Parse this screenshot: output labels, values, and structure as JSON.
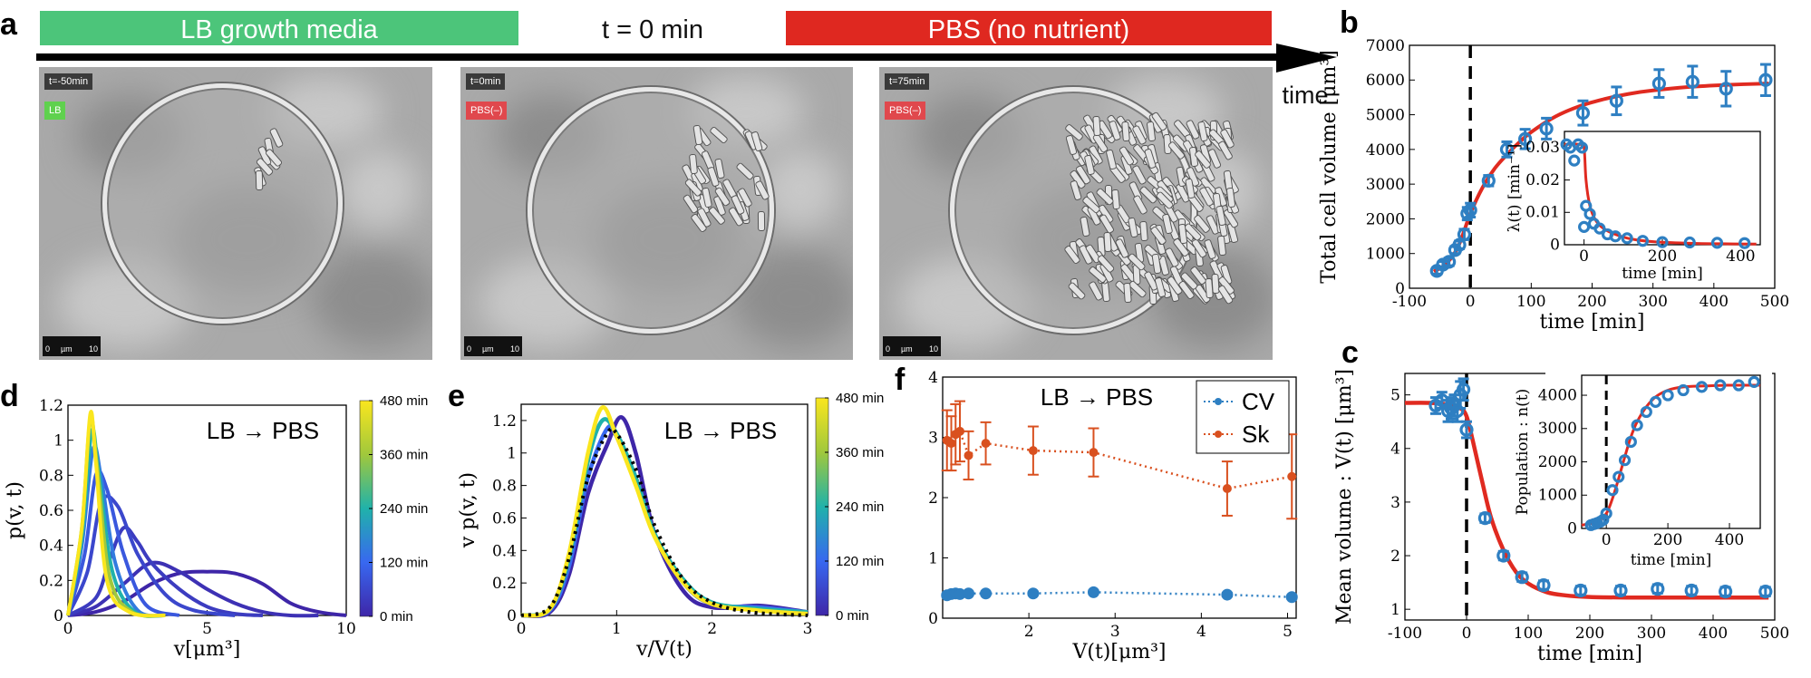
{
  "panel_a": {
    "letter": "a",
    "lb_banner": "LB growth media",
    "t0_label": "t = 0 min",
    "pbs_banner": "PBS (no nutrient)",
    "time_label": "time",
    "colors": {
      "lb": "#4cc57a",
      "pbs": "#df2820"
    },
    "frames": [
      {
        "time": "t=-50min",
        "medium": "LB",
        "medium_color": "#5fd14e",
        "scale_0": "0",
        "scale_unit": "µm",
        "scale_10": "10",
        "cells": 8
      },
      {
        "time": "t=0min",
        "medium": "PBS(–)",
        "medium_color": "#e0484d",
        "scale_0": "0",
        "scale_unit": "µm",
        "scale_10": "10",
        "cells": 40
      },
      {
        "time": "t=75min",
        "medium": "PBS(–)",
        "medium_color": "#e0484d",
        "scale_0": "0",
        "scale_unit": "µm",
        "scale_10": "10",
        "cells": 220
      }
    ]
  },
  "chart_data": [
    {
      "id": "b",
      "letter": "b",
      "type": "scatter",
      "xlabel": "time [min]",
      "ylabel": "Total cell volume [μm³]",
      "xlim": [
        -100,
        500
      ],
      "ylim": [
        0,
        7000
      ],
      "xticks": [
        "-100",
        "0",
        "100",
        "200",
        "300",
        "400",
        "500"
      ],
      "yticks": [
        "0",
        "1000",
        "2000",
        "3000",
        "4000",
        "5000",
        "6000",
        "7000"
      ],
      "points": {
        "x": [
          -55,
          -45,
          -35,
          -25,
          -18,
          -10,
          -5,
          0,
          30,
          60,
          90,
          125,
          185,
          240,
          310,
          365,
          420,
          485
        ],
        "y": [
          500,
          680,
          760,
          1100,
          1250,
          1550,
          2150,
          2250,
          3100,
          4000,
          4300,
          4600,
          5050,
          5400,
          5900,
          5950,
          5750,
          6000
        ],
        "err": [
          90,
          90,
          110,
          100,
          110,
          150,
          180,
          200,
          150,
          220,
          280,
          300,
          350,
          400,
          400,
          450,
          500,
          450
        ]
      },
      "fit": {
        "x": [
          -60,
          -40,
          -20,
          0,
          20,
          40,
          60,
          80,
          100,
          140,
          180,
          220,
          260,
          300,
          360,
          420,
          490
        ],
        "y": [
          480,
          700,
          1200,
          2150,
          2900,
          3450,
          3850,
          4200,
          4500,
          4950,
          5250,
          5450,
          5600,
          5700,
          5800,
          5860,
          5900
        ]
      },
      "t0_line": 0,
      "inset": {
        "xlabel": "time [min]",
        "ylabel": "λ(t) [min⁻¹]",
        "xlim": [
          -50,
          450
        ],
        "ylim": [
          0,
          0.035
        ],
        "xticks": [
          "0",
          "200",
          "400"
        ],
        "yticks": [
          "0",
          "0.01",
          "0.02",
          "0.03"
        ],
        "points": {
          "x": [
            -45,
            -35,
            -25,
            -15,
            -5,
            0,
            5,
            15,
            25,
            40,
            60,
            80,
            110,
            150,
            200,
            270,
            340,
            410
          ],
          "y": [
            0.031,
            0.03,
            0.026,
            0.031,
            0.03,
            0.0055,
            0.012,
            0.0095,
            0.0065,
            0.005,
            0.0032,
            0.0026,
            0.002,
            0.0012,
            0.0008,
            0.0007,
            0.0006,
            0.0005
          ]
        },
        "fit": {
          "x": [
            -50,
            -10,
            0,
            5,
            15,
            30,
            50,
            80,
            120,
            180,
            260,
            350,
            440
          ],
          "y": [
            0.031,
            0.031,
            0.03,
            0.02,
            0.012,
            0.0075,
            0.005,
            0.0032,
            0.0018,
            0.0009,
            0.0005,
            0.0003,
            0.0002
          ]
        }
      }
    },
    {
      "id": "c",
      "letter": "c",
      "type": "scatter",
      "xlabel": "time [min]",
      "ylabel": "Mean volume : V(t) [μm³]",
      "xlim": [
        -100,
        500
      ],
      "ylim": [
        0.8,
        5.4
      ],
      "xticks": [
        "-100",
        "0",
        "100",
        "200",
        "300",
        "400",
        "500"
      ],
      "yticks": [
        "1",
        "2",
        "3",
        "4",
        "5"
      ],
      "points": {
        "x": [
          -50,
          -40,
          -30,
          -25,
          -20,
          -15,
          -10,
          -5,
          0,
          30,
          60,
          90,
          125,
          185,
          250,
          310,
          365,
          420,
          485
        ],
        "y": [
          4.8,
          4.9,
          4.7,
          4.75,
          4.8,
          4.7,
          5.0,
          5.1,
          4.35,
          2.7,
          2.0,
          1.6,
          1.45,
          1.35,
          1.35,
          1.38,
          1.35,
          1.33,
          1.33
        ],
        "err": [
          0.15,
          0.15,
          0.2,
          0.2,
          0.2,
          0.2,
          0.25,
          0.2,
          0.15,
          0.08,
          0.08,
          0.08,
          0.08,
          0.08,
          0.08,
          0.08,
          0.08,
          0.08,
          0.08
        ]
      },
      "fit": {
        "x": [
          -100,
          -60,
          -30,
          -10,
          0,
          10,
          25,
          40,
          60,
          80,
          100,
          130,
          160,
          200,
          260,
          330,
          420,
          490
        ],
        "y": [
          4.85,
          4.85,
          4.82,
          4.75,
          4.6,
          4.15,
          3.4,
          2.7,
          2.1,
          1.7,
          1.48,
          1.32,
          1.26,
          1.23,
          1.22,
          1.22,
          1.22,
          1.22
        ]
      },
      "t0_line": 0,
      "inset": {
        "xlabel": "time [min]",
        "ylabel": "Population : n(t)",
        "xlim": [
          -80,
          500
        ],
        "ylim": [
          0,
          4600
        ],
        "xticks": [
          "0",
          "200",
          "400"
        ],
        "yticks": [
          "0",
          "1000",
          "2000",
          "3000",
          "4000"
        ],
        "points": {
          "x": [
            -50,
            -40,
            -30,
            -20,
            -10,
            0,
            20,
            40,
            60,
            80,
            100,
            130,
            160,
            200,
            250,
            310,
            370,
            430,
            480
          ],
          "y": [
            100,
            130,
            160,
            200,
            260,
            450,
            1150,
            1550,
            2050,
            2600,
            3100,
            3500,
            3800,
            4000,
            4150,
            4250,
            4300,
            4300,
            4400
          ]
        },
        "fit": {
          "x": [
            -80,
            -30,
            0,
            20,
            40,
            60,
            80,
            100,
            130,
            160,
            200,
            250,
            320,
            400,
            500
          ],
          "y": [
            100,
            200,
            450,
            900,
            1500,
            2150,
            2750,
            3200,
            3650,
            3950,
            4150,
            4250,
            4280,
            4300,
            4300
          ]
        }
      }
    },
    {
      "id": "d",
      "letter": "d",
      "type": "line",
      "annotation": "LB → PBS",
      "xlabel": "v[μm³]",
      "ylabel": "p(v, t)",
      "xlim": [
        0,
        10
      ],
      "ylim": [
        0,
        1.2
      ],
      "xticks": [
        "0",
        "5",
        "10"
      ],
      "yticks": [
        "0",
        "0.2",
        "0.4",
        "0.6",
        "0.8",
        "1",
        "1.2"
      ],
      "colorbar": {
        "labels": [
          "0 min",
          "120 min",
          "240 min",
          "360 min",
          "480 min"
        ],
        "range_min": [
          0,
          480
        ]
      },
      "curves": [
        {
          "t": 0,
          "x": [
            0,
            1,
            2,
            3,
            4,
            5,
            6,
            7,
            8,
            9,
            10
          ],
          "y": [
            0,
            0.02,
            0.08,
            0.18,
            0.24,
            0.25,
            0.24,
            0.18,
            0.07,
            0.02,
            0
          ]
        },
        {
          "t": 20,
          "x": [
            0,
            1,
            2,
            3,
            4,
            5,
            6,
            7,
            8,
            9
          ],
          "y": [
            0,
            0.05,
            0.18,
            0.3,
            0.25,
            0.15,
            0.07,
            0.02,
            0,
            0
          ]
        },
        {
          "t": 40,
          "x": [
            0,
            1,
            1.5,
            2,
            2.5,
            3,
            4,
            5,
            6,
            7
          ],
          "y": [
            0,
            0.1,
            0.32,
            0.5,
            0.42,
            0.3,
            0.15,
            0.05,
            0.01,
            0
          ]
        },
        {
          "t": 60,
          "x": [
            0,
            0.7,
            1.2,
            1.8,
            2.5,
            3.5,
            4.5,
            6
          ],
          "y": [
            0,
            0.25,
            0.65,
            0.62,
            0.35,
            0.12,
            0.03,
            0
          ]
        },
        {
          "t": 90,
          "x": [
            0,
            0.6,
            1.0,
            1.4,
            2.0,
            2.8,
            4
          ],
          "y": [
            0,
            0.35,
            0.8,
            0.72,
            0.35,
            0.06,
            0
          ]
        },
        {
          "t": 150,
          "x": [
            0,
            0.5,
            0.9,
            1.2,
            1.7,
            2.5,
            3.5
          ],
          "y": [
            0,
            0.4,
            0.95,
            0.78,
            0.3,
            0.03,
            0
          ]
        },
        {
          "t": 240,
          "x": [
            0,
            0.5,
            0.85,
            1.1,
            1.6,
            2.4,
            3.5
          ],
          "y": [
            0,
            0.45,
            1.05,
            0.82,
            0.25,
            0.02,
            0
          ]
        },
        {
          "t": 360,
          "x": [
            0,
            0.5,
            0.8,
            1.05,
            1.5,
            2.3,
            3.5
          ],
          "y": [
            0,
            0.5,
            1.12,
            0.85,
            0.22,
            0.02,
            0
          ]
        },
        {
          "t": 480,
          "x": [
            0,
            0.5,
            0.8,
            1.0,
            1.4,
            2.2,
            3.5
          ],
          "y": [
            0,
            0.5,
            1.15,
            0.88,
            0.2,
            0.02,
            0
          ]
        }
      ]
    },
    {
      "id": "e",
      "letter": "e",
      "type": "line",
      "annotation": "LB → PBS",
      "xlabel": "v/V(t)",
      "ylabel": "v p(v, t)",
      "xlim": [
        0,
        3
      ],
      "ylim": [
        0,
        1.3
      ],
      "xticks": [
        "0",
        "1",
        "2",
        "3"
      ],
      "yticks": [
        "0",
        "0.2",
        "0.4",
        "0.6",
        "0.8",
        "1",
        "1.2"
      ],
      "colorbar": {
        "labels": [
          "0 min",
          "120 min",
          "240 min",
          "360 min",
          "480 min"
        ],
        "range_min": [
          0,
          480
        ]
      },
      "curves": [
        {
          "t": 0,
          "x": [
            0,
            0.3,
            0.5,
            0.7,
            0.9,
            1.05,
            1.2,
            1.4,
            1.7,
            2.0,
            2.5,
            3
          ],
          "y": [
            0,
            0.02,
            0.25,
            0.75,
            1.05,
            1.22,
            1.0,
            0.5,
            0.15,
            0.05,
            0.06,
            0.02
          ]
        },
        {
          "t": 120,
          "x": [
            0,
            0.3,
            0.5,
            0.7,
            0.9,
            1.0,
            1.2,
            1.4,
            1.7,
            2.0,
            2.5,
            3
          ],
          "y": [
            0,
            0.03,
            0.3,
            0.85,
            1.15,
            1.1,
            0.85,
            0.5,
            0.2,
            0.07,
            0.05,
            0.02
          ]
        },
        {
          "t": 240,
          "x": [
            0,
            0.3,
            0.5,
            0.7,
            0.85,
            1.0,
            1.2,
            1.4,
            1.7,
            2.0,
            2.5,
            3
          ],
          "y": [
            0,
            0.04,
            0.35,
            0.95,
            1.2,
            1.12,
            0.85,
            0.5,
            0.22,
            0.08,
            0.04,
            0.02
          ]
        },
        {
          "t": 480,
          "x": [
            0,
            0.3,
            0.5,
            0.7,
            0.85,
            1.0,
            1.2,
            1.4,
            1.7,
            2.0,
            2.5,
            3
          ],
          "y": [
            0,
            0.04,
            0.38,
            1.0,
            1.28,
            1.1,
            0.8,
            0.48,
            0.2,
            0.07,
            0.03,
            0.01
          ]
        }
      ],
      "reference": {
        "style": "dotted",
        "x": [
          0,
          0.3,
          0.5,
          0.7,
          0.9,
          1.0,
          1.2,
          1.4,
          1.7,
          2.0,
          2.4,
          3
        ],
        "y": [
          0,
          0.05,
          0.35,
          0.85,
          1.12,
          1.12,
          0.9,
          0.55,
          0.22,
          0.08,
          0.02,
          0
        ]
      }
    },
    {
      "id": "f",
      "letter": "f",
      "type": "scatter",
      "annotation": "LB → PBS",
      "xlabel": "V(t)[μm³]",
      "ylabel": "",
      "xlim": [
        1,
        5.1
      ],
      "ylim": [
        0,
        4
      ],
      "xticks": [
        "2",
        "3",
        "4",
        "5"
      ],
      "yticks": [
        "0",
        "1",
        "2",
        "3",
        "4"
      ],
      "series": [
        {
          "name": "CV",
          "color": "#2e7fc2",
          "x": [
            1.05,
            1.1,
            1.15,
            1.2,
            1.3,
            1.5,
            2.05,
            2.75,
            4.3,
            5.05
          ],
          "y": [
            0.38,
            0.4,
            0.41,
            0.4,
            0.41,
            0.41,
            0.41,
            0.43,
            0.39,
            0.35
          ],
          "err": [
            0.03,
            0.03,
            0.03,
            0.03,
            0.03,
            0.03,
            0.03,
            0.03,
            0.03,
            0.03
          ]
        },
        {
          "name": "Sk",
          "color": "#d9501f",
          "x": [
            1.05,
            1.1,
            1.15,
            1.2,
            1.3,
            1.5,
            2.05,
            2.75,
            4.3,
            5.05
          ],
          "y": [
            2.95,
            2.9,
            3.05,
            3.1,
            2.7,
            2.9,
            2.78,
            2.75,
            2.15,
            2.35
          ],
          "err": [
            0.5,
            0.45,
            0.5,
            0.5,
            0.4,
            0.35,
            0.4,
            0.4,
            0.45,
            0.7
          ]
        }
      ]
    }
  ]
}
